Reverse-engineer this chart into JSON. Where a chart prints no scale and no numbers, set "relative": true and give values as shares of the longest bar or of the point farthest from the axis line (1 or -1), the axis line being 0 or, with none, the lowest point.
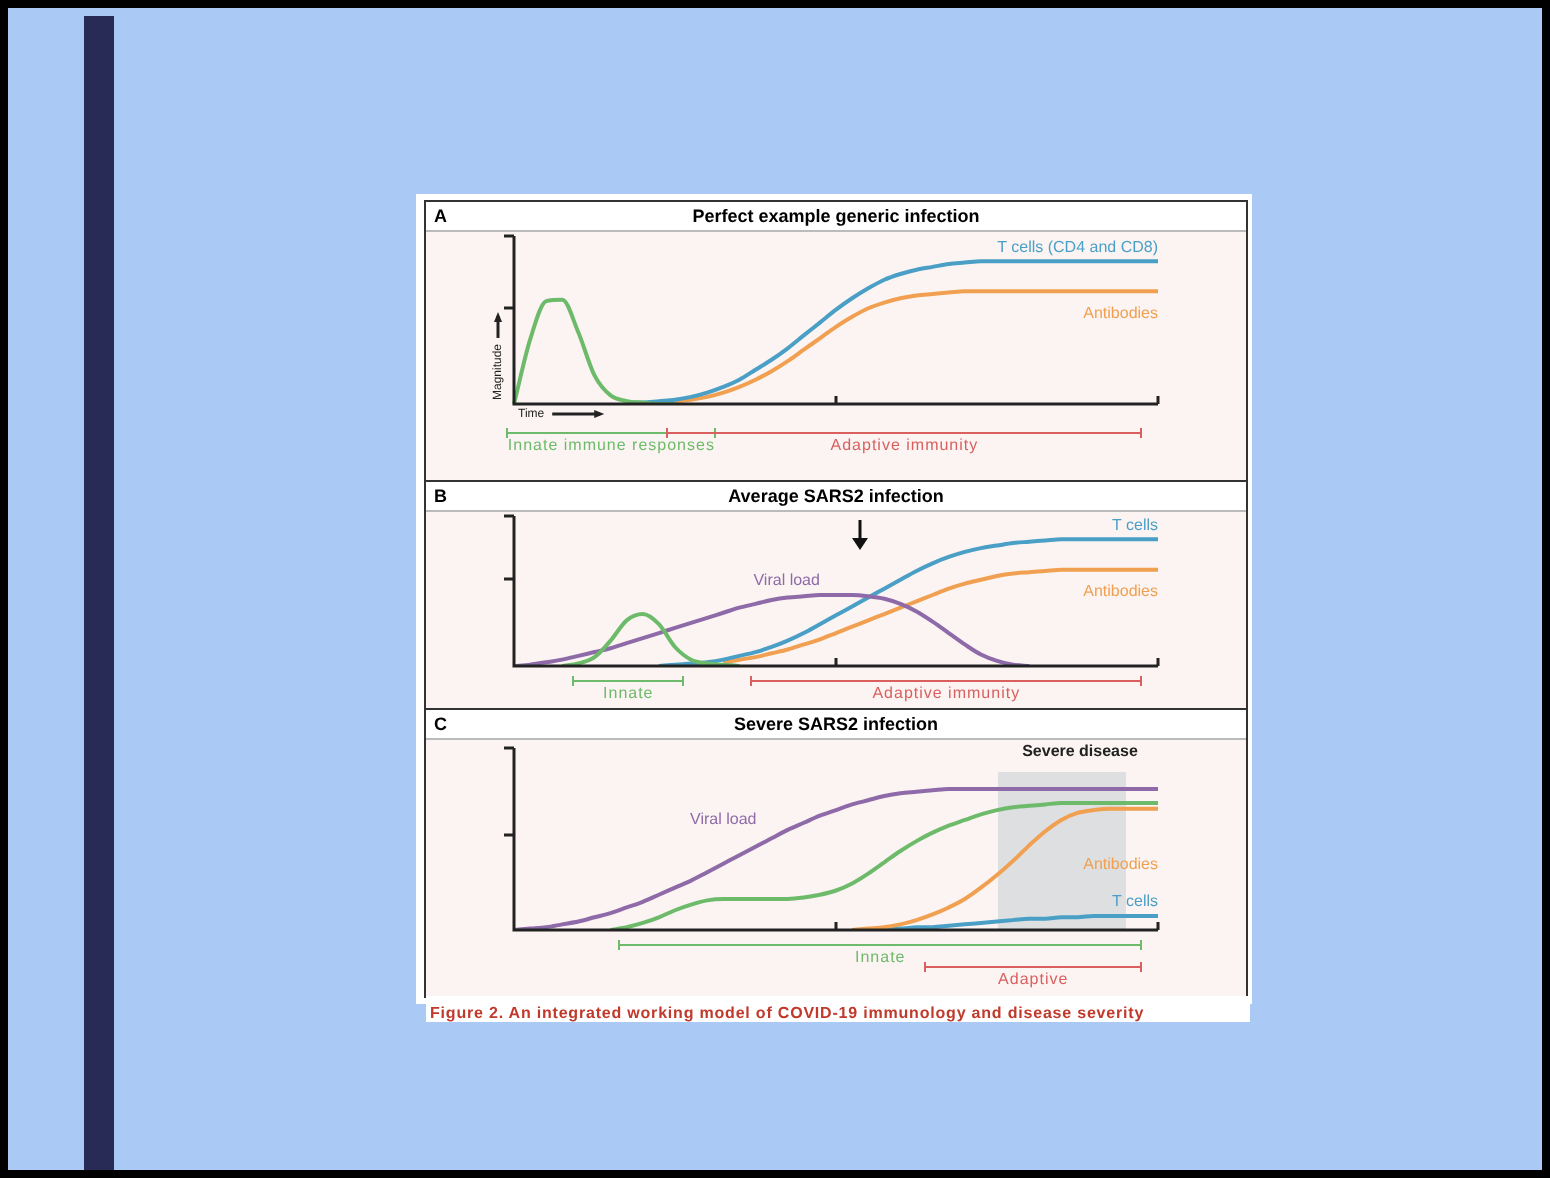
{
  "chart_data": [
    {
      "type": "line",
      "title": "Perfect example generic infection",
      "xlabel": "Time",
      "ylabel": "Magnitude",
      "relative": true,
      "legend": false,
      "marker": "none",
      "line_style": "solid",
      "categories": [
        null,
        null,
        null,
        null,
        null,
        null,
        null,
        null,
        null,
        null,
        null,
        null,
        null,
        null,
        null,
        null,
        null,
        null,
        null,
        null,
        null,
        null,
        null,
        null,
        null,
        null,
        null,
        null,
        null,
        null,
        null,
        null,
        null,
        null,
        null,
        null,
        null,
        null,
        null,
        null,
        null
      ],
      "annotations": [
        "A",
        "Innate immune responses",
        "Adaptive immunity"
      ],
      "series": [
        {
          "color": "#6dbb6a",
          "values": [
            0,
            0.45,
            0.72,
            0.73,
            0.5,
            0.2,
            0.06,
            0.02,
            0.01,
            0,
            0,
            null,
            null,
            null,
            null,
            null,
            null,
            null,
            null,
            null,
            null,
            null,
            null,
            null,
            null,
            null,
            null,
            null,
            null,
            null,
            null,
            null,
            null,
            null,
            null,
            null,
            null,
            null,
            null,
            null,
            null
          ]
        },
        {
          "name": "T cells (CD4 and CD8)",
          "color": "#4a9fc6",
          "values": [
            null,
            null,
            null,
            null,
            null,
            null,
            null,
            0.01,
            0.01,
            0.02,
            0.03,
            0.05,
            0.08,
            0.12,
            0.17,
            0.24,
            0.31,
            0.39,
            0.48,
            0.57,
            0.66,
            0.74,
            0.81,
            0.87,
            0.91,
            0.94,
            0.96,
            0.98,
            0.99,
            1,
            1,
            1,
            1,
            1,
            1,
            1,
            1,
            1,
            1,
            1,
            1
          ]
        },
        {
          "name": "Antibodies",
          "color": "#f0a050",
          "values": [
            null,
            null,
            null,
            null,
            null,
            null,
            null,
            null,
            null,
            null,
            0.02,
            0.03,
            0.05,
            0.08,
            0.12,
            0.17,
            0.23,
            0.3,
            0.38,
            0.46,
            0.54,
            0.61,
            0.67,
            0.71,
            0.74,
            0.76,
            0.77,
            0.78,
            0.79,
            0.79,
            0.79,
            0.79,
            0.79,
            0.79,
            0.79,
            0.79,
            0.79,
            0.79,
            0.79,
            0.79,
            0.79
          ]
        }
      ]
    },
    {
      "type": "line",
      "title": "Average SARS2 infection",
      "relative": true,
      "legend": false,
      "marker": "none",
      "line_style": "solid",
      "categories": [
        null,
        null,
        null,
        null,
        null,
        null,
        null,
        null,
        null,
        null,
        null,
        null,
        null,
        null,
        null,
        null,
        null,
        null,
        null,
        null,
        null,
        null,
        null,
        null,
        null,
        null,
        null,
        null,
        null,
        null,
        null,
        null,
        null,
        null,
        null,
        null,
        null,
        null,
        null,
        null,
        null
      ],
      "annotations": [
        "B",
        "Innate",
        "Adaptive immunity"
      ],
      "series": [
        {
          "color": "#6dbb6a",
          "values": [
            null,
            null,
            null,
            0,
            0.02,
            0.07,
            0.2,
            0.36,
            0.41,
            0.33,
            0.15,
            0.05,
            0.02,
            0.01,
            0,
            null,
            null,
            null,
            null,
            null,
            null,
            null,
            null,
            null,
            null,
            null,
            null,
            null,
            null,
            null,
            null,
            null,
            null,
            null,
            null,
            null,
            null,
            null,
            null,
            null,
            null
          ]
        },
        {
          "name": "Viral load",
          "color": "#8e6aa8",
          "values": [
            0,
            0.01,
            0.03,
            0.05,
            0.08,
            0.11,
            0.14,
            0.18,
            0.22,
            0.26,
            0.3,
            0.34,
            0.38,
            0.42,
            0.46,
            0.49,
            0.52,
            0.54,
            0.55,
            0.56,
            0.56,
            0.56,
            0.55,
            0.53,
            0.49,
            0.43,
            0.35,
            0.26,
            0.17,
            0.09,
            0.04,
            0.01,
            0,
            null,
            null,
            null,
            null,
            null,
            null,
            null,
            null
          ]
        },
        {
          "name": "T cells",
          "color": "#4a9fc6",
          "values": [
            null,
            null,
            null,
            null,
            null,
            null,
            null,
            null,
            null,
            0,
            0.01,
            0.02,
            0.03,
            0.05,
            0.08,
            0.11,
            0.15,
            0.2,
            0.26,
            0.33,
            0.4,
            0.47,
            0.54,
            0.61,
            0.68,
            0.75,
            0.81,
            0.86,
            0.9,
            0.93,
            0.95,
            0.97,
            0.98,
            0.99,
            1,
            1,
            1,
            1,
            1,
            1,
            1
          ]
        },
        {
          "name": "Antibodies",
          "color": "#f0a050",
          "values": [
            null,
            null,
            null,
            null,
            null,
            null,
            null,
            null,
            null,
            null,
            null,
            null,
            null,
            0.03,
            0.05,
            0.07,
            0.1,
            0.13,
            0.17,
            0.21,
            0.26,
            0.31,
            0.36,
            0.41,
            0.46,
            0.51,
            0.56,
            0.61,
            0.65,
            0.68,
            0.71,
            0.73,
            0.74,
            0.75,
            0.76,
            0.76,
            0.76,
            0.76,
            0.76,
            0.76,
            0.76
          ]
        }
      ]
    },
    {
      "type": "line",
      "title": "Severe SARS2 infection",
      "relative": true,
      "legend": false,
      "marker": "none",
      "line_style": "solid",
      "categories": [
        null,
        null,
        null,
        null,
        null,
        null,
        null,
        null,
        null,
        null,
        null,
        null,
        null,
        null,
        null,
        null,
        null,
        null,
        null,
        null,
        null,
        null,
        null,
        null,
        null,
        null,
        null,
        null,
        null,
        null,
        null,
        null,
        null,
        null,
        null,
        null,
        null,
        null,
        null,
        null,
        null
      ],
      "annotations": [
        "C",
        "Innate",
        "Adaptive",
        "Severe disease",
        "Figure 2. An integrated working model of COVID-19 immunology and disease severity"
      ],
      "series": [
        {
          "name": "Viral load",
          "color": "#8e6aa8",
          "values": [
            0,
            0.01,
            0.02,
            0.04,
            0.06,
            0.09,
            0.12,
            0.16,
            0.2,
            0.25,
            0.3,
            0.35,
            0.41,
            0.47,
            0.53,
            0.59,
            0.65,
            0.71,
            0.76,
            0.81,
            0.85,
            0.89,
            0.92,
            0.95,
            0.97,
            0.98,
            0.99,
            1,
            1,
            1,
            1,
            1,
            1,
            1,
            1,
            1,
            1,
            1,
            1,
            1,
            1
          ]
        },
        {
          "color": "#6dbb6a",
          "values": [
            null,
            null,
            null,
            null,
            null,
            null,
            0,
            0.02,
            0.05,
            0.09,
            0.14,
            0.18,
            0.21,
            0.22,
            0.22,
            0.22,
            0.22,
            0.22,
            0.23,
            0.25,
            0.28,
            0.33,
            0.4,
            0.48,
            0.56,
            0.63,
            0.69,
            0.74,
            0.78,
            0.82,
            0.85,
            0.87,
            0.88,
            0.89,
            0.9,
            0.9,
            0.9,
            0.9,
            0.9,
            0.9,
            0.9
          ]
        },
        {
          "name": "Antibodies",
          "color": "#f0a050",
          "values": [
            null,
            null,
            null,
            null,
            null,
            null,
            null,
            null,
            null,
            null,
            null,
            null,
            null,
            null,
            null,
            null,
            null,
            null,
            null,
            null,
            null,
            0,
            0.01,
            0.02,
            0.04,
            0.07,
            0.11,
            0.16,
            0.22,
            0.3,
            0.39,
            0.49,
            0.6,
            0.7,
            0.78,
            0.83,
            0.85,
            0.86,
            0.86,
            0.86,
            0.86
          ]
        },
        {
          "name": "T cells",
          "color": "#4a9fc6",
          "values": [
            null,
            null,
            null,
            null,
            null,
            null,
            null,
            null,
            null,
            null,
            null,
            null,
            null,
            null,
            null,
            null,
            null,
            null,
            null,
            null,
            null,
            0,
            0,
            0.01,
            0.01,
            0.02,
            0.02,
            0.03,
            0.04,
            0.05,
            0.06,
            0.07,
            0.08,
            0.08,
            0.09,
            0.09,
            0.1,
            0.1,
            0.1,
            0.1,
            0.1
          ]
        }
      ]
    }
  ]
}
